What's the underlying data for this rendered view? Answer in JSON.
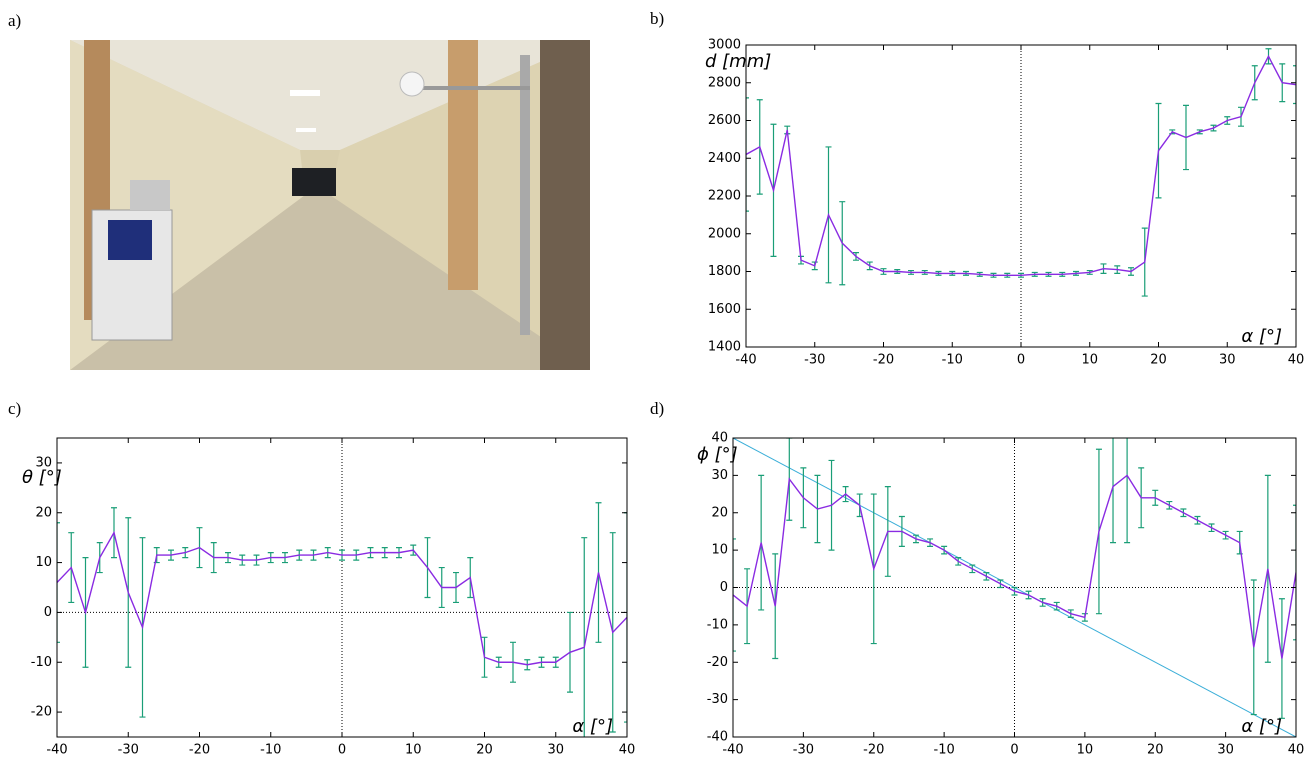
{
  "photo": {
    "label": "a)"
  },
  "chart_data": [
    {
      "type": "errorbar",
      "panel": "b)",
      "ylabel": "d [mm]",
      "xlabel": "α [°]",
      "x": [
        -40,
        -38,
        -36,
        -34,
        -32,
        -30,
        -28,
        -26,
        -24,
        -22,
        -20,
        -18,
        -16,
        -14,
        -12,
        -10,
        -8,
        -6,
        -4,
        -2,
        0,
        2,
        4,
        6,
        8,
        10,
        12,
        14,
        16,
        18,
        20,
        22,
        24,
        26,
        28,
        30,
        32,
        34,
        36,
        38,
        40
      ],
      "series": [
        {
          "color": "#8a2be2",
          "error_color": "#1a9e77",
          "values": [
            2420,
            2460,
            2230,
            2550,
            1860,
            1830,
            2100,
            1950,
            1880,
            1830,
            1800,
            1800,
            1795,
            1795,
            1790,
            1790,
            1790,
            1785,
            1780,
            1780,
            1780,
            1785,
            1785,
            1785,
            1790,
            1795,
            1815,
            1810,
            1800,
            1850,
            2440,
            2540,
            2510,
            2540,
            2560,
            2600,
            2620,
            2800,
            2940,
            2800,
            2790
          ],
          "errors": [
            300,
            250,
            350,
            20,
            20,
            20,
            360,
            220,
            20,
            20,
            15,
            10,
            10,
            10,
            10,
            10,
            10,
            10,
            10,
            10,
            10,
            10,
            10,
            10,
            10,
            10,
            25,
            20,
            20,
            180,
            250,
            10,
            170,
            10,
            15,
            20,
            50,
            90,
            40,
            100,
            100
          ]
        }
      ],
      "xlim": [
        -40,
        40
      ],
      "ylim": [
        1400,
        3000
      ],
      "xticks": [
        -40,
        -30,
        -20,
        -10,
        0,
        10,
        20,
        30,
        40
      ],
      "yticks": [
        1400,
        1600,
        1800,
        2000,
        2200,
        2400,
        2600,
        2800,
        3000
      ],
      "zero_vline": true,
      "zero_hline": false
    },
    {
      "type": "errorbar",
      "panel": "c)",
      "ylabel": "θ [°]",
      "xlabel": "α [°]",
      "x": [
        -40,
        -38,
        -36,
        -34,
        -32,
        -30,
        -28,
        -26,
        -24,
        -22,
        -20,
        -18,
        -16,
        -14,
        -12,
        -10,
        -8,
        -6,
        -4,
        -2,
        0,
        2,
        4,
        6,
        8,
        10,
        12,
        14,
        16,
        18,
        20,
        22,
        24,
        26,
        28,
        30,
        32,
        34,
        36,
        38,
        40
      ],
      "series": [
        {
          "color": "#8a2be2",
          "error_color": "#1a9e77",
          "values": [
            6,
            9,
            0,
            11,
            16,
            4,
            -3,
            11.5,
            11.5,
            12,
            13,
            11,
            11,
            10.5,
            10.5,
            11,
            11,
            11.5,
            11.5,
            12,
            11.5,
            11.5,
            12,
            12,
            12,
            12.5,
            9,
            5,
            5,
            7,
            -9,
            -10,
            -10,
            -10.5,
            -10,
            -10,
            -8,
            -7,
            8,
            -4,
            -1
          ],
          "errors": [
            12,
            7,
            11,
            3,
            5,
            15,
            18,
            1.5,
            1,
            1,
            4,
            3,
            1,
            1,
            1,
            1,
            1,
            1,
            1,
            1,
            1,
            1,
            1,
            1,
            1,
            1,
            6,
            4,
            3,
            4,
            4,
            1,
            4,
            1,
            1,
            1,
            8,
            22,
            14,
            20,
            21
          ]
        }
      ],
      "xlim": [
        -40,
        40
      ],
      "ylim": [
        -25,
        35
      ],
      "xticks": [
        -40,
        -30,
        -20,
        -10,
        0,
        10,
        20,
        30,
        40
      ],
      "yticks": [
        -20,
        -10,
        0,
        10,
        20,
        30
      ],
      "zero_vline": true,
      "zero_hline": true
    },
    {
      "type": "errorbar",
      "panel": "d)",
      "ylabel": "ϕ [°]",
      "xlabel": "α [°]",
      "x": [
        -40,
        -38,
        -36,
        -34,
        -32,
        -30,
        -28,
        -26,
        -24,
        -22,
        -20,
        -18,
        -16,
        -14,
        -12,
        -10,
        -8,
        -6,
        -4,
        -2,
        0,
        2,
        4,
        6,
        8,
        10,
        12,
        14,
        16,
        18,
        20,
        22,
        24,
        26,
        28,
        30,
        32,
        34,
        36,
        38,
        40
      ],
      "series": [
        {
          "color": "#8a2be2",
          "error_color": "#1a9e77",
          "values": [
            -2,
            -5,
            12,
            -5,
            29,
            24,
            21,
            22,
            25,
            22,
            5,
            15,
            15,
            13,
            12,
            10,
            7,
            5,
            3,
            1,
            -1,
            -2,
            -4,
            -5,
            -7,
            -8,
            15,
            27,
            30,
            24,
            24,
            22,
            20,
            18,
            16,
            14,
            12,
            -16,
            5,
            -19,
            4
          ],
          "errors": [
            15,
            10,
            18,
            14,
            11,
            8,
            9,
            12,
            2,
            3,
            20,
            12,
            4,
            1,
            1,
            1,
            1,
            1,
            1,
            1,
            1,
            1,
            1,
            1,
            1,
            1,
            22,
            15,
            18,
            8,
            2,
            1,
            1,
            1,
            1,
            1,
            3,
            18,
            25,
            16,
            18
          ]
        }
      ],
      "reference_line": {
        "x": [
          -40,
          40
        ],
        "y": [
          40,
          -40
        ],
        "color": "#3aaed8"
      },
      "xlim": [
        -40,
        40
      ],
      "ylim": [
        -40,
        40
      ],
      "xticks": [
        -40,
        -30,
        -20,
        -10,
        0,
        10,
        20,
        30,
        40
      ],
      "yticks": [
        -40,
        -30,
        -20,
        -10,
        0,
        10,
        20,
        30,
        40
      ],
      "zero_vline": true,
      "zero_hline": true
    }
  ]
}
